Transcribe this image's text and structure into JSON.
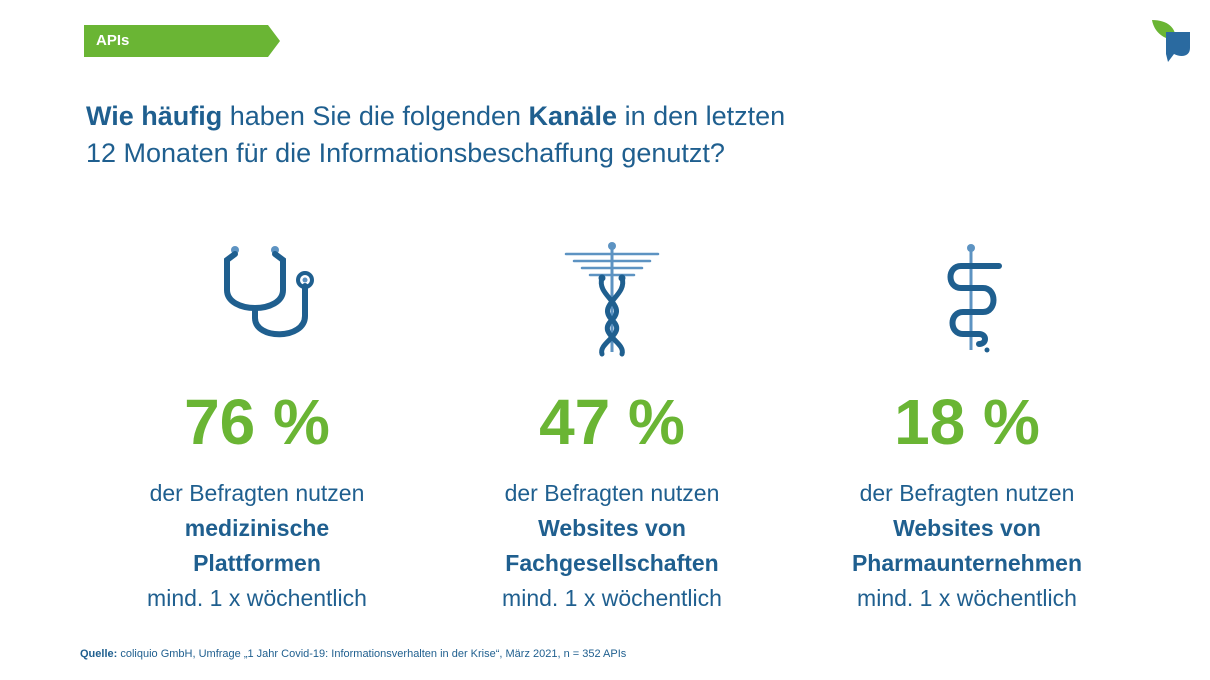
{
  "tag": "APIs",
  "headline": {
    "part1_bold": "Wie häufig",
    "part2": " haben Sie die folgenden ",
    "part3_bold": "Kanäle",
    "part4": " in den letzten",
    "line2": "12 Monaten für die Informationsbeschaffung genutzt?"
  },
  "stats": [
    {
      "icon": "stethoscope-icon",
      "percent": "76 %",
      "line1": "der Befragten nutzen",
      "bold1": "medizinische",
      "bold2": "Plattformen",
      "line4": "mind. 1 x wöchentlich"
    },
    {
      "icon": "caduceus-icon",
      "percent": "47 %",
      "line1": "der Befragten nutzen",
      "bold1": "Websites von",
      "bold2": "Fachgesellschaften",
      "line4": "mind. 1 x wöchentlich"
    },
    {
      "icon": "rod-of-asclepius-icon",
      "percent": "18 %",
      "line1": "der Befragten nutzen",
      "bold1": "Websites von",
      "bold2": "Pharmaunternehmen",
      "line4": "mind. 1 x wöchentlich"
    }
  ],
  "source": {
    "label": "Quelle:",
    "text": " coliquio GmbH, Umfrage „1 Jahr Covid-19: Informationsverhalten in der Krise“, März 2021, n = 352 APIs"
  },
  "colors": {
    "green": "#6ab534",
    "blue": "#1f5f8f",
    "light_blue": "#5d93c2"
  }
}
